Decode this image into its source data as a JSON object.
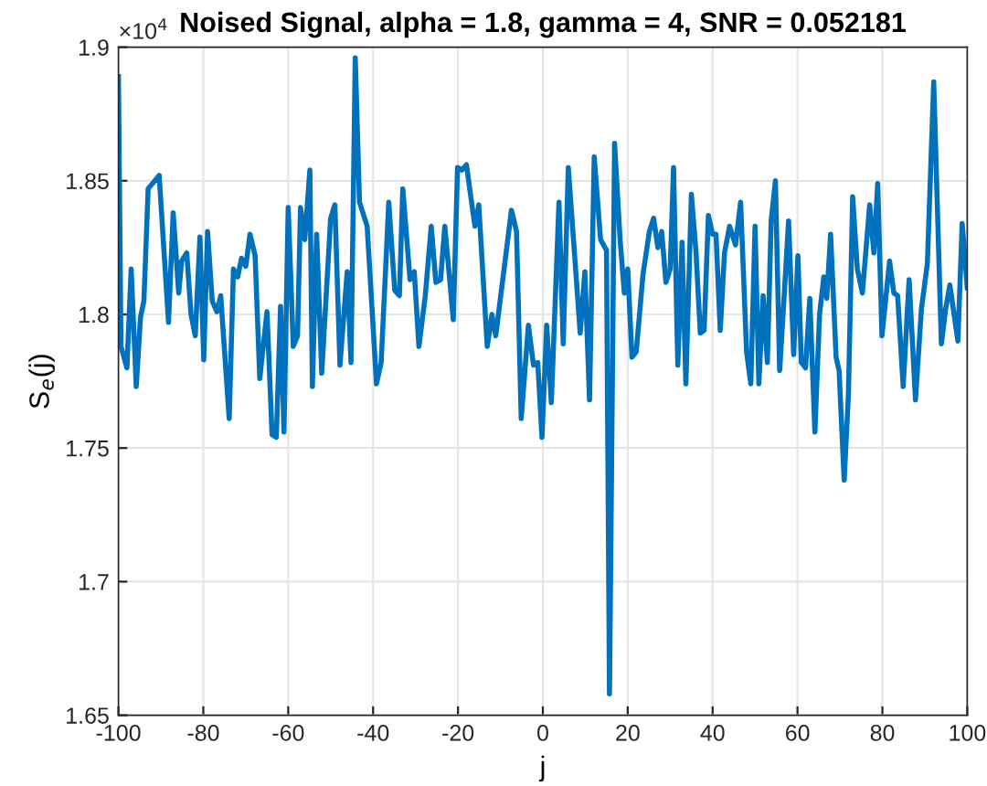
{
  "chart_data": {
    "type": "line",
    "title": "Noised Signal, alpha = 1.8, gamma = 4, SNR = 0.052181",
    "xlabel": "j",
    "ylabel": "S$_{e}$(j)",
    "annotations": [
      "×10$^{4}$"
    ],
    "x": [
      -100,
      -99.4,
      -98.0,
      -97.0,
      -95.8,
      -94.8,
      -94.0,
      -93.0,
      -90.4,
      -88.2,
      -87.1,
      -85.8,
      -85.1,
      -83.9,
      -82.9,
      -81.9,
      -80.8,
      -79.9,
      -79.0,
      -77.9,
      -76.8,
      -75.9,
      -73.9,
      -72.9,
      -71.9,
      -71.0,
      -70.0,
      -69.0,
      -67.8,
      -66.7,
      -65.0,
      -63.8,
      -62.8,
      -61.8,
      -61.0,
      -60.0,
      -58.8,
      -57.8,
      -57.1,
      -56.1,
      -54.9,
      -54.3,
      -53.3,
      -52.1,
      -50.0,
      -49.0,
      -47.8,
      -46.1,
      -45.2,
      -44.2,
      -43.2,
      -41.4,
      -39.2,
      -38.1,
      -36.3,
      -34.9,
      -33.8,
      -33.0,
      -31.3,
      -30.3,
      -29.2,
      -27.7,
      -26.3,
      -25.2,
      -24.1,
      -23.1,
      -21.1,
      -20.1,
      -19.1,
      -18.0,
      -16.8,
      -16.0,
      -15.1,
      -13.1,
      -12.0,
      -11.1,
      -7.4,
      -6.2,
      -5.1,
      -3.4,
      -2.2,
      -1.2,
      -0.2,
      0.9,
      2.0,
      3.8,
      4.8,
      6.0,
      7.4,
      8.8,
      9.9,
      11.0,
      12.1,
      13.6,
      15.0,
      15.7,
      16.9,
      18.2,
      19.2,
      20.0,
      21.0,
      22.0,
      23.6,
      25.1,
      26.1,
      27.1,
      28.0,
      29.0,
      30.0,
      30.8,
      31.8,
      32.8,
      33.7,
      35.0,
      36.1,
      37.1,
      38.0,
      39.0,
      40.0,
      40.8,
      41.8,
      42.8,
      44.0,
      45.4,
      46.6,
      48.0,
      49.0,
      50.0,
      50.9,
      51.9,
      52.9,
      53.8,
      54.8,
      55.8,
      56.9,
      57.9,
      59.1,
      60.1,
      60.9,
      61.9,
      62.9,
      64.1,
      65.2,
      66.2,
      66.9,
      67.8,
      69.1,
      69.8,
      71.0,
      72.0,
      73.0,
      74.1,
      75.3,
      77.0,
      78.0,
      78.9,
      79.9,
      81.7,
      82.7,
      83.6,
      84.9,
      86.3,
      87.8,
      89.2,
      90.6,
      92.1,
      93.9,
      94.9,
      95.9,
      97.8,
      98.8,
      100
    ],
    "series": [
      {
        "color": "#0072bd",
        "values": [
          1.889,
          1.788,
          1.78,
          1.817,
          1.773,
          1.799,
          1.805,
          1.847,
          1.852,
          1.797,
          1.838,
          1.808,
          1.82,
          1.823,
          1.8,
          1.792,
          1.829,
          1.783,
          1.831,
          1.805,
          1.801,
          1.807,
          1.761,
          1.817,
          1.814,
          1.821,
          1.818,
          1.83,
          1.822,
          1.776,
          1.801,
          1.755,
          1.754,
          1.803,
          1.756,
          1.84,
          1.788,
          1.792,
          1.84,
          1.828,
          1.854,
          1.773,
          1.83,
          1.778,
          1.836,
          1.841,
          1.781,
          1.816,
          1.782,
          1.896,
          1.842,
          1.833,
          1.774,
          1.782,
          1.842,
          1.809,
          1.807,
          1.847,
          1.813,
          1.816,
          1.788,
          1.807,
          1.833,
          1.812,
          1.813,
          1.833,
          1.798,
          1.855,
          1.854,
          1.856,
          1.842,
          1.833,
          1.841,
          1.788,
          1.8,
          1.792,
          1.839,
          1.831,
          1.761,
          1.796,
          1.781,
          1.782,
          1.754,
          1.796,
          1.767,
          1.842,
          1.789,
          1.855,
          1.824,
          1.793,
          1.816,
          1.768,
          1.859,
          1.828,
          1.824,
          1.658,
          1.864,
          1.828,
          1.808,
          1.817,
          1.784,
          1.786,
          1.815,
          1.831,
          1.836,
          1.825,
          1.831,
          1.812,
          1.817,
          1.855,
          1.781,
          1.827,
          1.774,
          1.845,
          1.823,
          1.793,
          1.794,
          1.837,
          1.83,
          1.83,
          1.794,
          1.823,
          1.833,
          1.826,
          1.842,
          1.786,
          1.774,
          1.833,
          1.774,
          1.807,
          1.782,
          1.835,
          1.85,
          1.779,
          1.808,
          1.835,
          1.785,
          1.822,
          1.782,
          1.78,
          1.806,
          1.756,
          1.8,
          1.814,
          1.806,
          1.83,
          1.784,
          1.779,
          1.738,
          1.77,
          1.844,
          1.817,
          1.808,
          1.841,
          1.823,
          1.849,
          1.792,
          1.82,
          1.808,
          1.807,
          1.773,
          1.813,
          1.768,
          1.802,
          1.819,
          1.887,
          1.789,
          1.802,
          1.811,
          1.79,
          1.834,
          1.81
        ]
      }
    ],
    "xlim": [
      -100,
      100
    ],
    "xticks": [
      -100,
      -80,
      -60,
      -40,
      -20,
      0,
      20,
      40,
      60,
      80,
      100
    ],
    "ylim": [
      1.65,
      1.9
    ],
    "yticks": [
      1.65,
      1.7,
      1.75,
      1.8,
      1.85,
      1.9
    ],
    "grid": true,
    "line_style": "solid",
    "marker": "none"
  }
}
